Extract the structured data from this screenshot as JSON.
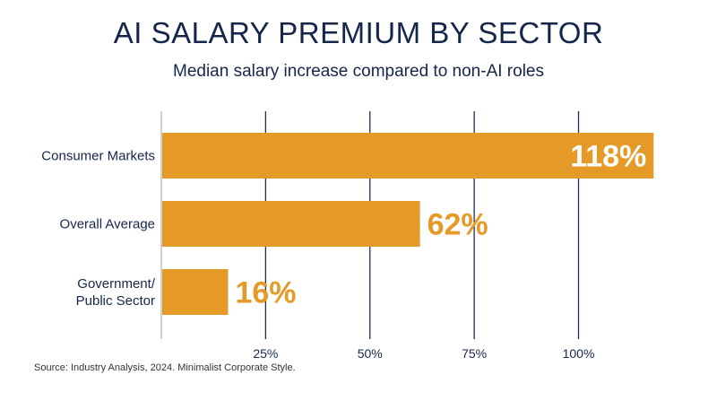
{
  "title": "AI SALARY PREMIUM BY SECTOR",
  "subtitle": "Median salary increase compared to non-AI roles",
  "source": "Source: Industry Analysis, 2024. Minimalist Corporate Style.",
  "colors": {
    "bar": "#e59a27",
    "text_dark": "#15264a",
    "gridline": "#1e2d52",
    "axis": "#cfcfcf",
    "label_inside": "#ffffff",
    "label_outside": "#e59a27"
  },
  "chart_data": {
    "type": "bar",
    "orientation": "horizontal",
    "categories": [
      "Consumer Markets",
      "Overall Average",
      "Government/\nPublic Sector"
    ],
    "values": [
      118,
      62,
      16
    ],
    "value_labels": [
      "118%",
      "62%",
      "16%"
    ],
    "xticks": [
      25,
      50,
      75,
      100
    ],
    "xtick_labels": [
      "25%",
      "50%",
      "75%",
      "100%"
    ],
    "xlim": [
      0,
      125
    ],
    "grid": true
  }
}
